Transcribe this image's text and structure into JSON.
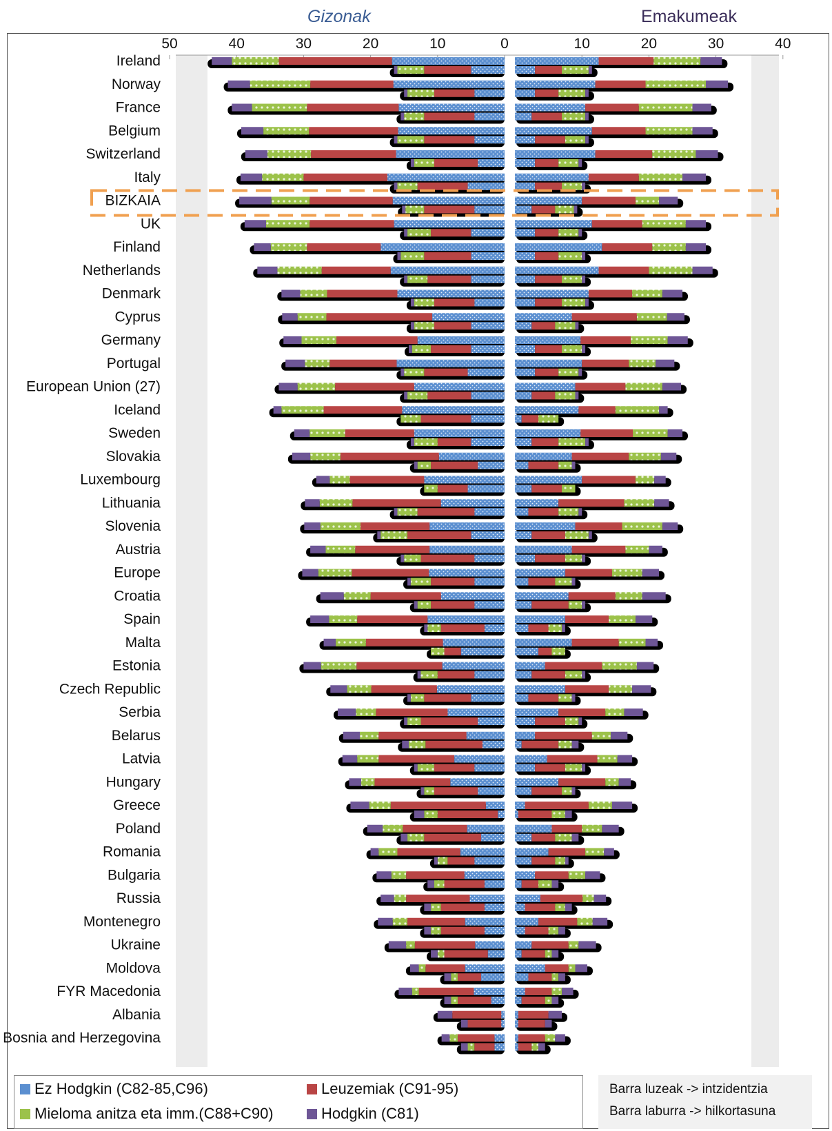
{
  "headers": {
    "men": "Gizonak",
    "women": "Emakumeak"
  },
  "legend": {
    "nonhodgkin": "Ez Hodgkin (C82-85,C96)",
    "leukaemia": "Leuzemiak (C91-95)",
    "myeloma": "Mieloma anitza eta imm.(C88+C90)",
    "hodgkin": "Hodgkin (C81)"
  },
  "note": {
    "line1": "Barra luzeak -> intzidentzia",
    "line2": "Barra laburra -> hilkortasuna"
  },
  "colors": {
    "nonhodgkin": "#5b8fd0",
    "leukaemia": "#b94545",
    "myeloma": "#9cc24a",
    "hodgkin": "#6e5696",
    "shadow": "#000000",
    "highlight": "#f0a050"
  },
  "chart_data": {
    "type": "bar",
    "orientation": "horizontal, back-to-back, stacked",
    "x_ticks_men": [
      "50",
      "40",
      "30",
      "20",
      "10",
      "0"
    ],
    "x_ticks_women": [
      "10",
      "20",
      "30",
      "40"
    ],
    "xlim_men": [
      0,
      50
    ],
    "xlim_women": [
      0,
      40
    ],
    "highlight": "BIZKAIA",
    "stack_order": [
      "nonhodgkin",
      "leukaemia",
      "myeloma",
      "hodgkin"
    ],
    "rows": [
      {
        "country": "Ireland",
        "m_inc": [
          16.8,
          16.9,
          7,
          3
        ],
        "m_mort": [
          5,
          7,
          4,
          0.5
        ],
        "f_inc": [
          12.5,
          8.2,
          7,
          3.2
        ],
        "f_mort": [
          3,
          4,
          4,
          0.5
        ]
      },
      {
        "country": "Norway",
        "m_inc": [
          16.6,
          12.4,
          9,
          3.3
        ],
        "m_mort": [
          4.5,
          6,
          4,
          0.5
        ],
        "f_inc": [
          12,
          7.5,
          9,
          3.3
        ],
        "f_mort": [
          3,
          3.5,
          4,
          0.5
        ]
      },
      {
        "country": "France",
        "m_inc": [
          15.8,
          13.7,
          8.2,
          3
        ],
        "m_mort": [
          4.5,
          7.5,
          3,
          0.5
        ],
        "f_inc": [
          10.5,
          8,
          8,
          2.8
        ],
        "f_mort": [
          2.5,
          4.5,
          3.5,
          0.5
        ]
      },
      {
        "country": "Belgium",
        "m_inc": [
          15.9,
          13.3,
          6.8,
          3.3
        ],
        "m_mort": [
          4.5,
          7.5,
          4,
          0.5
        ],
        "f_inc": [
          11.5,
          8,
          7,
          3
        ],
        "f_mort": [
          3,
          4.5,
          3,
          0.5
        ]
      },
      {
        "country": "Switzerland",
        "m_inc": [
          16.2,
          12.7,
          6.5,
          3.3
        ],
        "m_mort": [
          4,
          6.5,
          3,
          0.5
        ],
        "f_inc": [
          12,
          8.5,
          6.5,
          3.3
        ],
        "f_mort": [
          3,
          3.5,
          3,
          0.5
        ]
      },
      {
        "country": "Italy",
        "m_inc": [
          17.5,
          12.5,
          6.2,
          3.2
        ],
        "m_mort": [
          5.5,
          7.5,
          3,
          0.5
        ],
        "f_inc": [
          11,
          7.5,
          6.5,
          3.5
        ],
        "f_mort": [
          3,
          4,
          3,
          0.5
        ]
      },
      {
        "country": "BIZKAIA",
        "m_inc": [
          16.7,
          12.4,
          5.7,
          4.8
        ],
        "m_mort": [
          4.5,
          7.5,
          2.8,
          0.5
        ],
        "f_inc": [
          10,
          8,
          3.5,
          2.8
        ],
        "f_mort": [
          2.5,
          3.5,
          2.8,
          0.5
        ]
      },
      {
        "country": "UK",
        "m_inc": [
          16.5,
          12.6,
          6.5,
          3.2
        ],
        "m_mort": [
          5,
          6,
          3.5,
          0.5
        ],
        "f_inc": [
          11.5,
          7.5,
          6.5,
          3
        ],
        "f_mort": [
          3,
          3.5,
          3,
          0.5
        ]
      },
      {
        "country": "Finland",
        "m_inc": [
          18.5,
          11,
          5.4,
          2.5
        ],
        "m_mort": [
          5,
          7,
          3.5,
          0.5
        ],
        "f_inc": [
          13,
          7.5,
          5,
          3
        ],
        "f_mort": [
          3,
          3.5,
          3.5,
          0.5
        ]
      },
      {
        "country": "Netherlands",
        "m_inc": [
          17,
          10.3,
          6.6,
          3
        ],
        "m_mort": [
          5,
          6.5,
          3,
          0.5
        ],
        "f_inc": [
          12.5,
          7.5,
          6.5,
          3
        ],
        "f_mort": [
          3,
          4,
          3,
          0.5
        ]
      },
      {
        "country": "Denmark",
        "m_inc": [
          16,
          10.5,
          4,
          2.8
        ],
        "m_mort": [
          4.5,
          6,
          3,
          0.5
        ],
        "f_inc": [
          11,
          6.5,
          4.5,
          3
        ],
        "f_mort": [
          3,
          4,
          3.5,
          0.5
        ]
      },
      {
        "country": "Cyprus",
        "m_inc": [
          10.8,
          15.8,
          4.3,
          2.3
        ],
        "m_mort": [
          5,
          5.5,
          3,
          0.5
        ],
        "f_inc": [
          8.5,
          9.7,
          4.5,
          2.6
        ],
        "f_mort": [
          2.5,
          3.5,
          3,
          0.5
        ]
      },
      {
        "country": "Germany",
        "m_inc": [
          13,
          12.1,
          5.2,
          2.7
        ],
        "m_mort": [
          5,
          6,
          2.8,
          0.5
        ],
        "f_inc": [
          9.8,
          7.5,
          5.5,
          3
        ],
        "f_mort": [
          3,
          4,
          3,
          0.5
        ]
      },
      {
        "country": "Portugal",
        "m_inc": [
          16.1,
          10,
          3.7,
          2.9
        ],
        "m_mort": [
          5.5,
          6.5,
          3,
          0.5
        ],
        "f_inc": [
          10,
          7,
          4,
          2.8
        ],
        "f_mort": [
          3,
          3.5,
          3,
          0.5
        ]
      },
      {
        "country": "European Union (27)",
        "m_inc": [
          13.5,
          11.8,
          5.6,
          2.8
        ],
        "m_mort": [
          5,
          6.5,
          3,
          0.5
        ],
        "f_inc": [
          9,
          7.5,
          5.5,
          2.8
        ],
        "f_mort": [
          2.5,
          3.5,
          3,
          0.5
        ]
      },
      {
        "country": "Iceland",
        "m_inc": [
          15.3,
          11.7,
          6.3,
          1.2
        ],
        "m_mort": [
          5,
          7.5,
          3,
          0
        ],
        "f_inc": [
          9.5,
          5.5,
          6.5,
          1.3
        ],
        "f_mort": [
          1,
          2.5,
          3,
          0
        ]
      },
      {
        "country": "Sweden",
        "m_inc": [
          13.5,
          10.3,
          5.3,
          2.3
        ],
        "m_mort": [
          5,
          5,
          3.5,
          0.5
        ],
        "f_inc": [
          9.8,
          7.8,
          5.2,
          2.2
        ],
        "f_mort": [
          2.5,
          4,
          4,
          0.5
        ]
      },
      {
        "country": "Slovakia",
        "m_inc": [
          9.8,
          14.7,
          4.5,
          2.7
        ],
        "m_mort": [
          4,
          7,
          2,
          0.5
        ],
        "f_inc": [
          8.5,
          8.5,
          4.8,
          2.3
        ],
        "f_mort": [
          2,
          4.5,
          2,
          0.5
        ]
      },
      {
        "country": "Luxembourg",
        "m_inc": [
          12,
          11.1,
          3,
          2
        ],
        "m_mort": [
          5.5,
          4.5,
          2,
          0
        ],
        "f_inc": [
          10,
          8,
          2.8,
          1.7
        ],
        "f_mort": [
          2.5,
          4.5,
          2,
          0
        ]
      },
      {
        "country": "Lithuania",
        "m_inc": [
          9.5,
          13.2,
          4.9,
          2.2
        ],
        "m_mort": [
          4.5,
          8.5,
          3,
          0.5
        ],
        "f_inc": [
          6.5,
          9.8,
          4.5,
          2.2
        ],
        "f_mort": [
          2,
          4.5,
          3,
          0.5
        ]
      },
      {
        "country": "Slovenia",
        "m_inc": [
          11.2,
          10.3,
          6,
          2.4
        ],
        "m_mort": [
          5,
          9.5,
          4,
          0.5
        ],
        "f_inc": [
          9,
          7,
          6,
          2.3
        ],
        "f_mort": [
          2.5,
          5,
          3.5,
          0.5
        ]
      },
      {
        "country": "Austria",
        "m_inc": [
          11.2,
          11.1,
          4.4,
          2.3
        ],
        "m_mort": [
          4.5,
          8,
          2.5,
          0.5
        ],
        "f_inc": [
          8.5,
          8,
          3.5,
          2
        ],
        "f_mort": [
          3,
          4.5,
          2.5,
          0.5
        ]
      },
      {
        "country": "Europe",
        "m_inc": [
          11.3,
          11.5,
          5,
          2.4
        ],
        "m_mort": [
          4.5,
          6.5,
          3,
          0.5
        ],
        "f_inc": [
          7.5,
          7,
          4.5,
          2.5
        ],
        "f_mort": [
          2,
          4,
          2.5,
          0.5
        ]
      },
      {
        "country": "Croatia",
        "m_inc": [
          9.5,
          10.5,
          4,
          3.5
        ],
        "m_mort": [
          4.5,
          6.5,
          2,
          0.5
        ],
        "f_inc": [
          8,
          7,
          4,
          3.5
        ],
        "f_mort": [
          2.5,
          5.5,
          2,
          0.5
        ]
      },
      {
        "country": "Spain",
        "m_inc": [
          11.5,
          10.5,
          4.2,
          2.8
        ],
        "m_mort": [
          3,
          6.5,
          2,
          0.5
        ],
        "f_inc": [
          7.5,
          6.5,
          4,
          2.5
        ],
        "f_mort": [
          2,
          3,
          2,
          0.5
        ]
      },
      {
        "country": "Malta",
        "m_inc": [
          9.2,
          11.5,
          4.5,
          1.8
        ],
        "m_mort": [
          6.5,
          2.5,
          2,
          0
        ],
        "f_inc": [
          8.5,
          7,
          4,
          1.8
        ],
        "f_mort": [
          3.5,
          2,
          2,
          0
        ]
      },
      {
        "country": "Estonia",
        "m_inc": [
          9.3,
          12.8,
          5.3,
          2.6
        ],
        "m_mort": [
          4.5,
          5.5,
          2.5,
          0.5
        ],
        "f_inc": [
          4.5,
          8.5,
          5.2,
          2.5
        ],
        "f_mort": [
          2.5,
          5,
          2.5,
          0.5
        ]
      },
      {
        "country": "Czech Republic",
        "m_inc": [
          10.1,
          9.8,
          3.6,
          2.5
        ],
        "m_mort": [
          5,
          7,
          2,
          0.5
        ],
        "f_inc": [
          7.5,
          6.5,
          3.5,
          2.8
        ],
        "f_mort": [
          2,
          4.5,
          2,
          0.5
        ]
      },
      {
        "country": "Serbia",
        "m_inc": [
          8.5,
          10.7,
          3,
          2.7
        ],
        "m_mort": [
          4,
          8.5,
          2,
          0.5
        ],
        "f_inc": [
          6.5,
          7,
          2.8,
          2.8
        ],
        "f_mort": [
          3,
          4.5,
          2,
          0.5
        ]
      },
      {
        "country": "Belarus",
        "m_inc": [
          5.7,
          13.1,
          2.8,
          2.5
        ],
        "m_mort": [
          3.3,
          8.5,
          2.5,
          1
        ],
        "f_inc": [
          3,
          8.5,
          2.8,
          2.5
        ],
        "f_mort": [
          1,
          5.5,
          2,
          1
        ]
      },
      {
        "country": "Latvia",
        "m_inc": [
          7.5,
          11.3,
          3.2,
          2.2
        ],
        "m_mort": [
          4.5,
          6,
          2.5,
          0.5
        ],
        "f_inc": [
          4.8,
          7.5,
          3,
          2.2
        ],
        "f_mort": [
          3,
          4.5,
          2.5,
          0.5
        ]
      },
      {
        "country": "Hungary",
        "m_inc": [
          8.1,
          11.3,
          2,
          1.8
        ],
        "m_mort": [
          4,
          6.5,
          1.5,
          0.5
        ],
        "f_inc": [
          6.5,
          7,
          2,
          1.8
        ],
        "f_mort": [
          2.5,
          4.5,
          1.5,
          0.5
        ]
      },
      {
        "country": "Greece",
        "m_inc": [
          2.8,
          14.2,
          3.2,
          2.8
        ],
        "m_mort": [
          1,
          9,
          2,
          1.5
        ],
        "f_inc": [
          1.5,
          9.5,
          3.5,
          3
        ],
        "f_mort": [
          0.5,
          5,
          2,
          1
        ]
      },
      {
        "country": "Poland",
        "m_inc": [
          5.6,
          9.6,
          3,
          2.3
        ],
        "m_mort": [
          3.5,
          8.5,
          2.5,
          1
        ],
        "f_inc": [
          5.5,
          4.5,
          3,
          2.5
        ],
        "f_mort": [
          2.5,
          3.5,
          2.5,
          1
        ]
      },
      {
        "country": "Romania",
        "m_inc": [
          6.6,
          9.4,
          2.8,
          1.2
        ],
        "m_mort": [
          4.5,
          4,
          1.5,
          0.5
        ],
        "f_inc": [
          5,
          5.5,
          2.8,
          1.5
        ],
        "f_mort": [
          2.5,
          3.5,
          1.5,
          0.5
        ]
      },
      {
        "country": "Bulgaria",
        "m_inc": [
          6,
          8.7,
          2.2,
          2.2
        ],
        "m_mort": [
          3,
          6,
          1.5,
          1
        ],
        "f_inc": [
          3,
          5,
          2.5,
          2.2
        ],
        "f_mort": [
          1,
          2.5,
          2,
          1
        ]
      },
      {
        "country": "Russia",
        "m_inc": [
          5.2,
          9.5,
          1.8,
          2
        ],
        "m_mort": [
          3,
          6.5,
          1.5,
          1
        ],
        "f_inc": [
          3.8,
          6.3,
          1.7,
          1.8
        ],
        "f_mort": [
          1.5,
          4.5,
          1.5,
          1
        ]
      },
      {
        "country": "Montenegro",
        "m_inc": [
          5.9,
          8.6,
          2.2,
          2.2
        ],
        "m_mort": [
          3,
          6.5,
          1.5,
          1
        ],
        "f_inc": [
          3.5,
          5.8,
          2.3,
          2.2
        ],
        "f_mort": [
          1.5,
          3.5,
          1.5,
          1
        ]
      },
      {
        "country": "Ukraine",
        "m_inc": [
          4.4,
          9,
          1.3,
          2.6
        ],
        "m_mort": [
          2.5,
          6.5,
          1,
          1
        ],
        "f_inc": [
          2.5,
          5.5,
          1.5,
          2.6
        ],
        "f_mort": [
          1,
          3.5,
          1,
          1
        ]
      },
      {
        "country": "Moldova",
        "m_inc": [
          5.9,
          5.9,
          1,
          1.3
        ],
        "m_mort": [
          3.5,
          3.5,
          1,
          1
        ],
        "f_inc": [
          4.5,
          3.5,
          1,
          1.8
        ],
        "f_mort": [
          2,
          3.5,
          1,
          1
        ]
      },
      {
        "country": "FYR Macedonia",
        "m_inc": [
          4.6,
          8.2,
          1,
          2
        ],
        "m_mort": [
          2,
          5,
          1,
          1
        ],
        "f_inc": [
          1.5,
          4,
          1.5,
          1.7
        ],
        "f_mort": [
          1,
          3.5,
          1,
          1
        ]
      },
      {
        "country": "Albania",
        "m_inc": [
          0.5,
          7.3,
          0,
          2.2
        ],
        "m_mort": [
          0.5,
          5,
          0,
          1
        ],
        "f_inc": [
          0.5,
          4.5,
          0,
          2
        ],
        "f_mort": [
          0.5,
          4,
          0,
          1
        ]
      },
      {
        "country": "Bosnia and Herzegovina",
        "m_inc": [
          1.5,
          5.5,
          1.2,
          1.2
        ],
        "m_mort": [
          1.5,
          3,
          1,
          1
        ],
        "f_inc": [
          0.5,
          4,
          1.5,
          1.5
        ],
        "f_mort": [
          0.5,
          2,
          1,
          1
        ]
      }
    ]
  }
}
